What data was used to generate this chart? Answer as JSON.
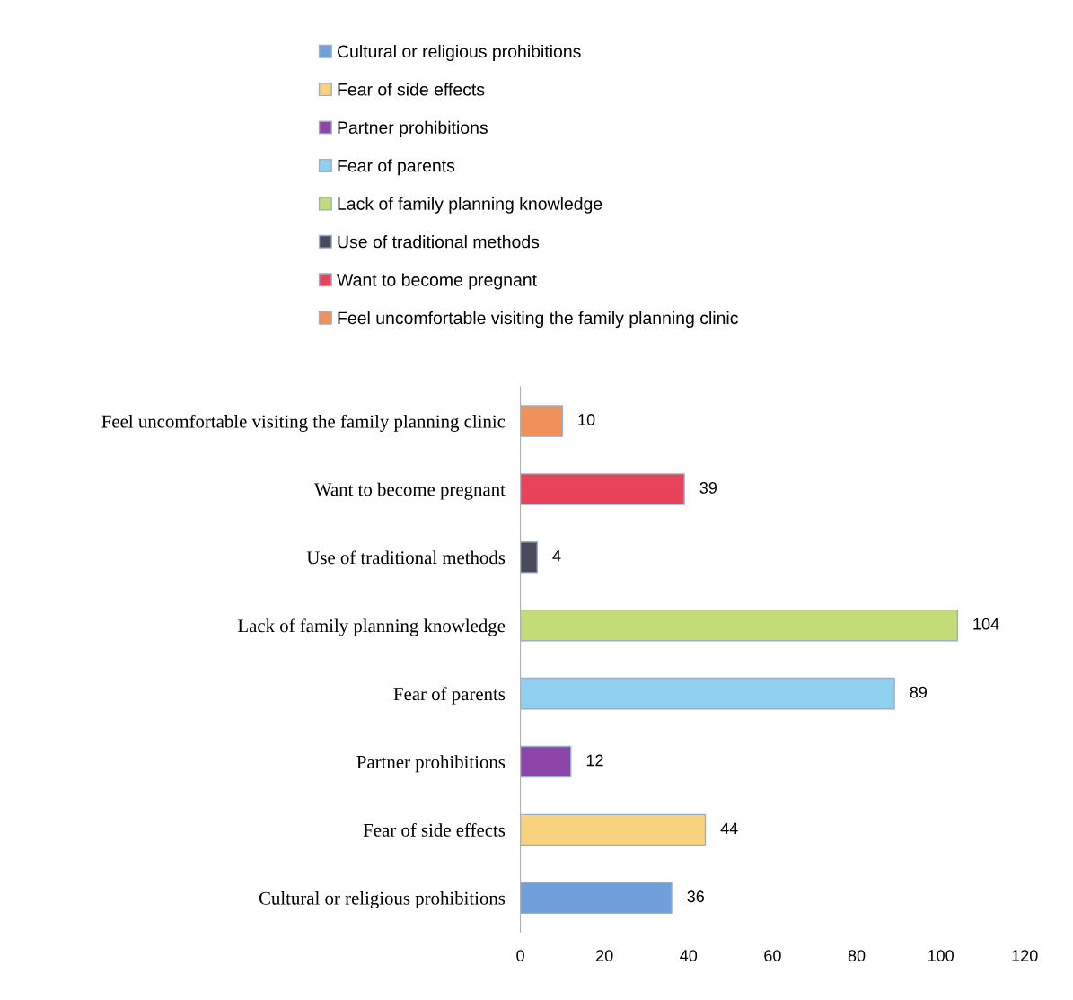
{
  "chart_data": {
    "type": "bar",
    "orientation": "horizontal",
    "categories": [
      "Feel uncomfortable visiting the family planning clinic",
      "Want to become pregnant",
      "Use of traditional methods",
      "Lack of family planning knowledge",
      "Fear of parents",
      "Partner prohibitions",
      "Fear of side effects",
      "Cultural or religious prohibitions"
    ],
    "series": [
      {
        "name": "Cultural or religious prohibitions",
        "color": "#6fa0dc",
        "values": [
          null,
          null,
          null,
          null,
          null,
          null,
          null,
          36
        ]
      },
      {
        "name": "Fear of side effects",
        "color": "#f9d27e",
        "values": [
          null,
          null,
          null,
          null,
          null,
          null,
          44,
          null
        ]
      },
      {
        "name": "Partner prohibitions",
        "color": "#8e44a8",
        "values": [
          null,
          null,
          null,
          null,
          null,
          12,
          null,
          null
        ]
      },
      {
        "name": "Fear of parents",
        "color": "#8fd0f0",
        "values": [
          null,
          null,
          null,
          null,
          89,
          null,
          null,
          null
        ]
      },
      {
        "name": "Lack of family planning knowledge",
        "color": "#c4dc78",
        "values": [
          null,
          null,
          null,
          104,
          null,
          null,
          null,
          null
        ]
      },
      {
        "name": "Use of traditional methods",
        "color": "#4a4a5c",
        "values": [
          null,
          null,
          4,
          null,
          null,
          null,
          null,
          null
        ]
      },
      {
        "name": "Want to become pregnant",
        "color": "#e8435a",
        "values": [
          null,
          39,
          null,
          null,
          null,
          null,
          null,
          null
        ]
      },
      {
        "name": "Feel uncomfortable visiting the family planning clinic",
        "color": "#f0905a",
        "values": [
          10,
          null,
          null,
          null,
          null,
          null,
          null,
          null
        ]
      }
    ],
    "xlim": [
      0,
      120
    ],
    "xticks": [
      0,
      20,
      40,
      60,
      80,
      100,
      120
    ],
    "data_labels": true,
    "grid": false,
    "legend": "top"
  }
}
